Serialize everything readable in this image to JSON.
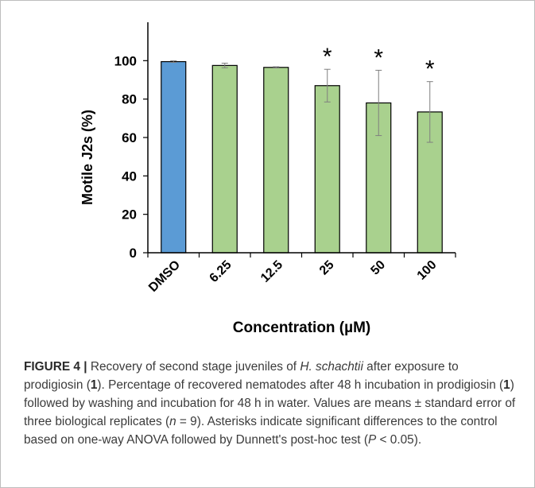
{
  "chart_data": {
    "type": "bar",
    "categories": [
      "DMSO",
      "6.25",
      "12.5",
      "25",
      "50",
      "100"
    ],
    "values": [
      99.5,
      97.5,
      96.5,
      87,
      78,
      73.3
    ],
    "errors": [
      0.4,
      1.2,
      0.3,
      8.5,
      17,
      15.8
    ],
    "significant": [
      false,
      false,
      false,
      true,
      true,
      true
    ],
    "significance_marker": "*",
    "bar_colors": [
      "#5b9bd5",
      "#a9d18e",
      "#a9d18e",
      "#a9d18e",
      "#a9d18e",
      "#a9d18e"
    ],
    "xlabel": "Concentration (µM)",
    "ylabel": "Motile J2s (%)",
    "ylim": [
      0,
      120
    ],
    "yticks": [
      0,
      20,
      40,
      60,
      80,
      100
    ],
    "grid": false,
    "legend": "none"
  },
  "caption": {
    "label": "FIGURE 4 |",
    "p1": " Recovery of second stage juveniles of ",
    "species": "H. schachtii",
    "p2": " after exposure to prodigiosin (",
    "compound1": "1",
    "p3": "). Percentage of recovered nematodes after 48 h incubation in prodigiosin (",
    "compound2": "1",
    "p4": ") followed by washing and incubation for 48 h in water. Values are means ± standard error of three biological replicates (",
    "n_var": "n",
    "p5": " = 9). Asterisks indicate significant differences to the control based on one-way ANOVA followed by Dunnett's post-hoc test (",
    "p_var": "P",
    "p6": " < 0.05)."
  }
}
